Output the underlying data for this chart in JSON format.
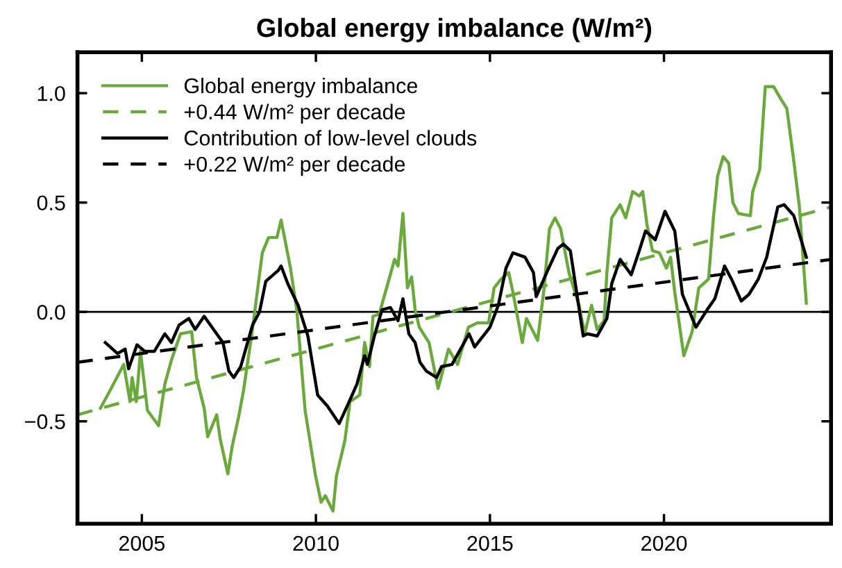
{
  "chart_data": {
    "type": "line",
    "title": "Global energy imbalance (W/m²)",
    "xlim": [
      2003.15,
      2024.8
    ],
    "ylim": [
      -0.968,
      1.187
    ],
    "xticks": [
      2005,
      2010,
      2015,
      2020
    ],
    "yticks": [
      {
        "value": -0.5,
        "label": "−0.5"
      },
      {
        "value": 0.0,
        "label": "0.0"
      },
      {
        "value": 0.5,
        "label": "0.5"
      },
      {
        "value": 1.0,
        "label": "1.0"
      }
    ],
    "grid": false,
    "legend": "top left",
    "ref_lines": [
      {
        "axis": "y",
        "value": 0,
        "color": "#000000",
        "line_style": "solid"
      }
    ],
    "series": [
      {
        "name": "Global energy imbalance",
        "color": "#6aaa3c",
        "line_style": "solid",
        "x": [
          2003.81,
          2004.05,
          2004.48,
          2004.66,
          2004.72,
          2004.84,
          2004.96,
          2005.16,
          2005.48,
          2005.66,
          2005.85,
          2006.11,
          2006.43,
          2006.57,
          2006.79,
          2006.89,
          2007.15,
          2007.25,
          2007.47,
          2007.6,
          2007.78,
          2007.92,
          2008.16,
          2008.46,
          2008.64,
          2008.88,
          2009.0,
          2009.27,
          2009.45,
          2009.69,
          2009.99,
          2010.15,
          2010.27,
          2010.49,
          2010.59,
          2010.83,
          2010.98,
          2011.26,
          2011.4,
          2011.54,
          2011.64,
          2011.82,
          2012.26,
          2012.36,
          2012.5,
          2012.63,
          2012.75,
          2012.85,
          2012.97,
          2013.25,
          2013.51,
          2013.81,
          2014.07,
          2014.38,
          2014.64,
          2014.96,
          2015.12,
          2015.32,
          2015.54,
          2015.66,
          2015.93,
          2016.05,
          2016.37,
          2016.55,
          2016.71,
          2016.87,
          2017.03,
          2017.27,
          2017.56,
          2017.72,
          2017.92,
          2018.08,
          2018.28,
          2018.36,
          2018.5,
          2018.74,
          2018.9,
          2019.1,
          2019.29,
          2019.39,
          2019.51,
          2019.67,
          2019.87,
          2020.07,
          2020.19,
          2020.31,
          2020.57,
          2020.81,
          2021.0,
          2021.28,
          2021.42,
          2021.54,
          2021.7,
          2021.86,
          2021.98,
          2022.14,
          2022.48,
          2022.55,
          2022.75,
          2022.91,
          2023.15,
          2023.37,
          2023.53,
          2023.73,
          2023.89,
          2024.09
        ],
        "values": [
          -0.44,
          -0.37,
          -0.24,
          -0.41,
          -0.3,
          -0.41,
          -0.18,
          -0.45,
          -0.52,
          -0.33,
          -0.22,
          -0.1,
          -0.09,
          -0.3,
          -0.44,
          -0.57,
          -0.47,
          -0.58,
          -0.74,
          -0.61,
          -0.48,
          -0.36,
          -0.1,
          0.27,
          0.34,
          0.34,
          0.42,
          0.2,
          0.01,
          -0.45,
          -0.75,
          -0.87,
          -0.84,
          -0.91,
          -0.75,
          -0.59,
          -0.41,
          -0.38,
          -0.14,
          -0.25,
          -0.02,
          -0.01,
          0.24,
          0.21,
          0.45,
          0.11,
          0.16,
          0.01,
          -0.07,
          -0.14,
          -0.35,
          -0.17,
          -0.24,
          -0.07,
          -0.05,
          -0.05,
          0.11,
          0.15,
          0.18,
          0.09,
          -0.14,
          -0.03,
          -0.13,
          0.1,
          0.38,
          0.43,
          0.38,
          0.18,
          0.03,
          -0.1,
          0.03,
          -0.08,
          -0.04,
          0.18,
          0.43,
          0.49,
          0.43,
          0.55,
          0.53,
          0.55,
          0.4,
          0.28,
          0.27,
          0.2,
          0.25,
          0.09,
          -0.2,
          -0.09,
          0.11,
          0.15,
          0.43,
          0.62,
          0.71,
          0.68,
          0.5,
          0.45,
          0.44,
          0.55,
          0.65,
          1.03,
          1.03,
          0.97,
          0.93,
          0.69,
          0.48,
          0.04
        ]
      },
      {
        "name": "+0.44 W/m² per decade",
        "color": "#6aaa3c",
        "line_style": "dashed",
        "x": [
          2003.15,
          2024.8
        ],
        "values": [
          -0.47,
          0.48
        ]
      },
      {
        "name": "Contribution of low-level clouds",
        "color": "#000000",
        "line_style": "solid",
        "x": [
          2003.95,
          2004.3,
          2004.52,
          2004.62,
          2004.86,
          2005.08,
          2005.36,
          2005.66,
          2005.85,
          2006.07,
          2006.35,
          2006.53,
          2006.79,
          2007.15,
          2007.33,
          2007.5,
          2007.64,
          2007.84,
          2008.18,
          2008.38,
          2008.56,
          2008.92,
          2009.0,
          2009.19,
          2009.49,
          2009.77,
          2010.05,
          2010.33,
          2010.67,
          2010.9,
          2011.18,
          2011.4,
          2011.48,
          2011.68,
          2011.9,
          2012.14,
          2012.36,
          2012.5,
          2012.67,
          2012.85,
          2012.99,
          2013.17,
          2013.47,
          2013.61,
          2013.91,
          2014.4,
          2014.56,
          2015.0,
          2015.24,
          2015.46,
          2015.66,
          2016.01,
          2016.25,
          2016.33,
          2016.63,
          2016.95,
          2017.11,
          2017.31,
          2017.68,
          2017.8,
          2018.08,
          2018.36,
          2018.5,
          2018.74,
          2019.06,
          2019.29,
          2019.47,
          2019.75,
          2020.03,
          2020.31,
          2020.53,
          2020.92,
          2021.24,
          2021.46,
          2021.74,
          2021.94,
          2022.22,
          2022.44,
          2022.71,
          2022.95,
          2023.27,
          2023.45,
          2023.73,
          2024.09
        ],
        "values": [
          -0.14,
          -0.19,
          -0.17,
          -0.26,
          -0.15,
          -0.18,
          -0.18,
          -0.1,
          -0.14,
          -0.06,
          -0.03,
          -0.08,
          -0.02,
          -0.1,
          -0.14,
          -0.27,
          -0.3,
          -0.25,
          -0.06,
          0.0,
          0.14,
          0.19,
          0.21,
          0.13,
          0.03,
          -0.11,
          -0.38,
          -0.43,
          -0.51,
          -0.43,
          -0.33,
          -0.2,
          -0.24,
          -0.11,
          0.01,
          0.02,
          -0.04,
          0.06,
          -0.1,
          -0.14,
          -0.23,
          -0.27,
          -0.3,
          -0.25,
          -0.24,
          -0.1,
          -0.16,
          -0.07,
          0.03,
          0.2,
          0.27,
          0.25,
          0.18,
          0.07,
          0.18,
          0.29,
          0.31,
          0.28,
          -0.11,
          -0.1,
          -0.11,
          -0.03,
          0.13,
          0.24,
          0.17,
          0.28,
          0.37,
          0.33,
          0.46,
          0.37,
          0.08,
          -0.07,
          0.01,
          0.06,
          0.21,
          0.15,
          0.05,
          0.08,
          0.15,
          0.25,
          0.48,
          0.49,
          0.44,
          0.25
        ]
      },
      {
        "name": "+0.22 W/m² per decade",
        "color": "#000000",
        "line_style": "dashed",
        "x": [
          2003.15,
          2024.8
        ],
        "values": [
          -0.23,
          0.24
        ]
      }
    ]
  }
}
